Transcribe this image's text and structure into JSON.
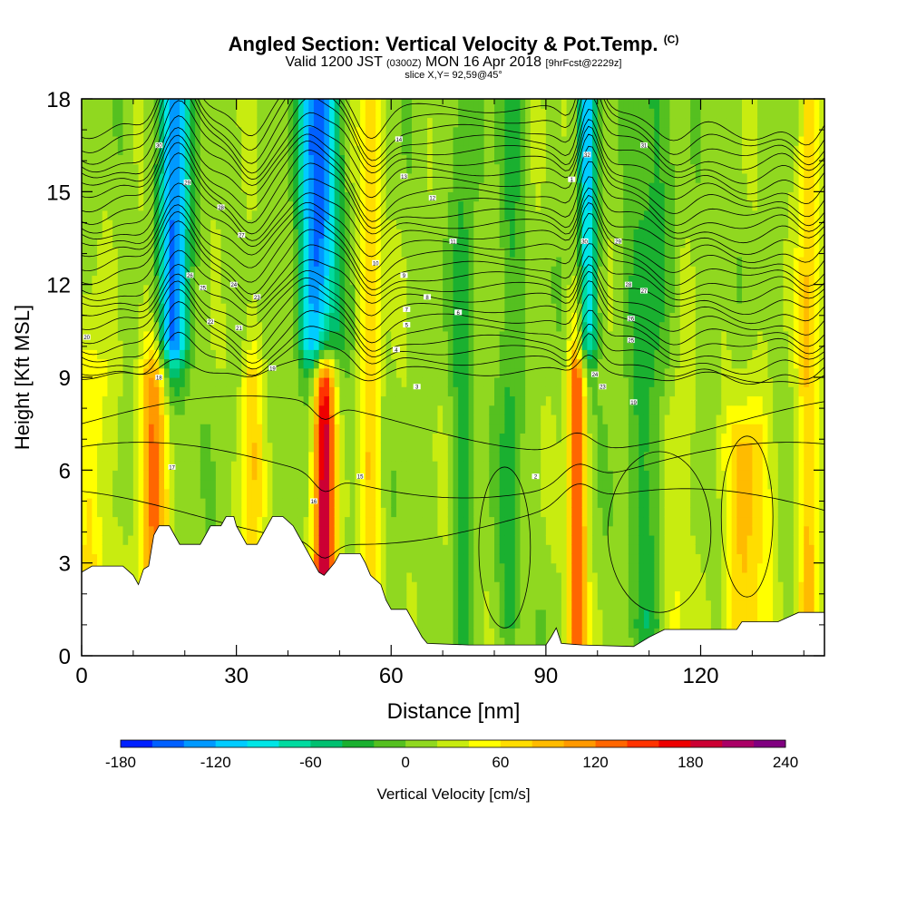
{
  "title": {
    "main": "Angled Section: Vertical Velocity & Pot.Temp.",
    "copyright": "(C)",
    "valid_prefix": "Valid 1200 JST",
    "utc": "(0300Z)",
    "valid_suffix": "MON 16 Apr 2018",
    "forecast": "[9hrFcst@2229z]",
    "slice": "slice X,Y= 92,59@45°"
  },
  "chart_data": {
    "type": "heatmap",
    "xlabel": "Distance [nm]",
    "ylabel": "Height [Kft MSL]",
    "xlim": [
      0,
      144
    ],
    "ylim": [
      0,
      18
    ],
    "x_ticks": [
      "0",
      "30",
      "60",
      "90",
      "120"
    ],
    "y_ticks": [
      "0",
      "3",
      "6",
      "9",
      "12",
      "15",
      "18"
    ],
    "colorbar": {
      "label": "Vertical Velocity [cm/s]",
      "tick_labels": [
        "-180",
        "-120",
        "-60",
        "0",
        "60",
        "120",
        "180",
        "240"
      ],
      "colors": [
        "#0020ff",
        "#0060ff",
        "#0099ff",
        "#00ccff",
        "#00e6e6",
        "#00dba0",
        "#00c070",
        "#1ab030",
        "#55c020",
        "#90d820",
        "#c8ec10",
        "#ffff00",
        "#ffdd00",
        "#ffbb00",
        "#ff9900",
        "#ff6600",
        "#ff3300",
        "#ee0000",
        "#cc0033",
        "#aa0066",
        "#800080"
      ]
    },
    "updraft_bands": [
      {
        "x": 2,
        "width": 5,
        "top": 9,
        "value": 50
      },
      {
        "x": 14,
        "width": 4,
        "top": 9,
        "value": 100
      },
      {
        "x": 33,
        "width": 3,
        "top": 9,
        "value": 60
      },
      {
        "x": 47,
        "width": 3,
        "top": 9,
        "value": 190
      },
      {
        "x": 56,
        "width": 3,
        "top": 18,
        "value": 60
      },
      {
        "x": 96,
        "width": 2.5,
        "top": 9,
        "value": 140
      },
      {
        "x": 115,
        "width": 4,
        "top": 8,
        "value": 40
      },
      {
        "x": 129,
        "width": 6,
        "top": 7,
        "value": 70
      },
      {
        "x": 141,
        "width": 3,
        "top": 18,
        "value": 70
      }
    ],
    "downdraft_bands": [
      {
        "x": 18,
        "width": 4,
        "bottom": 10,
        "value": -160
      },
      {
        "x": 46,
        "width": 5,
        "bottom": 10,
        "value": -175
      },
      {
        "x": 98,
        "width": 2.5,
        "bottom": 10,
        "value": -115
      },
      {
        "x": 74,
        "width": 3,
        "bottom": 1,
        "value": -40
      },
      {
        "x": 83,
        "width": 3,
        "bottom": 1,
        "value": -40
      },
      {
        "x": 110,
        "width": 6,
        "bottom": 1,
        "value": -40
      }
    ],
    "theta_labels": [
      {
        "x": 15,
        "y": 16.5,
        "text": "30"
      },
      {
        "x": 20.5,
        "y": 15.3,
        "text": "29"
      },
      {
        "x": 27,
        "y": 14.5,
        "text": "28"
      },
      {
        "x": 31,
        "y": 13.6,
        "text": "27"
      },
      {
        "x": 21,
        "y": 12.3,
        "text": "26"
      },
      {
        "x": 23.5,
        "y": 11.9,
        "text": "25"
      },
      {
        "x": 29.5,
        "y": 12,
        "text": "24"
      },
      {
        "x": 34,
        "y": 11.6,
        "text": "23"
      },
      {
        "x": 25,
        "y": 10.8,
        "text": "22"
      },
      {
        "x": 30.5,
        "y": 10.6,
        "text": "21"
      },
      {
        "x": 1,
        "y": 10.3,
        "text": "20"
      },
      {
        "x": 37,
        "y": 9.3,
        "text": "19"
      },
      {
        "x": 15,
        "y": 9,
        "text": "18"
      },
      {
        "x": 17.5,
        "y": 6.1,
        "text": "17"
      },
      {
        "x": 45,
        "y": 5.0,
        "text": "16"
      },
      {
        "x": 54,
        "y": 5.8,
        "text": "15"
      },
      {
        "x": 61.5,
        "y": 16.7,
        "text": "14"
      },
      {
        "x": 62.5,
        "y": 15.5,
        "text": "13"
      },
      {
        "x": 68,
        "y": 14.8,
        "text": "12"
      },
      {
        "x": 72,
        "y": 13.4,
        "text": "11"
      },
      {
        "x": 57,
        "y": 12.7,
        "text": "10"
      },
      {
        "x": 62.5,
        "y": 12.3,
        "text": "9"
      },
      {
        "x": 67,
        "y": 11.6,
        "text": "8"
      },
      {
        "x": 63,
        "y": 11.2,
        "text": "7"
      },
      {
        "x": 73,
        "y": 11.1,
        "text": "6"
      },
      {
        "x": 63,
        "y": 10.7,
        "text": "5"
      },
      {
        "x": 61,
        "y": 9.9,
        "text": "4"
      },
      {
        "x": 65,
        "y": 8.7,
        "text": "3"
      },
      {
        "x": 88,
        "y": 5.8,
        "text": "2"
      },
      {
        "x": 95,
        "y": 15.4,
        "text": "1"
      },
      {
        "x": 98,
        "y": 16.2,
        "text": "32"
      },
      {
        "x": 109,
        "y": 16.5,
        "text": "31"
      },
      {
        "x": 97.5,
        "y": 13.4,
        "text": "30"
      },
      {
        "x": 104,
        "y": 13.4,
        "text": "29"
      },
      {
        "x": 106,
        "y": 12.0,
        "text": "28"
      },
      {
        "x": 109,
        "y": 11.8,
        "text": "27"
      },
      {
        "x": 106.5,
        "y": 10.9,
        "text": "26"
      },
      {
        "x": 106.5,
        "y": 10.2,
        "text": "25"
      },
      {
        "x": 99.5,
        "y": 9.1,
        "text": "24"
      },
      {
        "x": 101,
        "y": 8.7,
        "text": "23"
      },
      {
        "x": 107,
        "y": 8.2,
        "text": "19"
      }
    ],
    "terrain": [
      [
        0,
        2.7
      ],
      [
        2,
        2.9
      ],
      [
        8,
        2.9
      ],
      [
        10,
        2.6
      ],
      [
        11,
        2.3
      ],
      [
        12,
        2.8
      ],
      [
        13,
        2.9
      ],
      [
        14,
        3.9
      ],
      [
        15,
        4.2
      ],
      [
        17,
        4.2
      ],
      [
        18,
        3.9
      ],
      [
        19,
        3.6
      ],
      [
        23,
        3.6
      ],
      [
        24,
        3.9
      ],
      [
        25,
        4.2
      ],
      [
        27,
        4.2
      ],
      [
        28,
        4.5
      ],
      [
        29.5,
        4.5
      ],
      [
        30,
        4.2
      ],
      [
        31,
        3.9
      ],
      [
        32,
        3.6
      ],
      [
        34,
        3.6
      ],
      [
        35,
        3.9
      ],
      [
        36,
        4.2
      ],
      [
        37,
        4.5
      ],
      [
        39,
        4.5
      ],
      [
        41,
        4.2
      ],
      [
        42,
        3.9
      ],
      [
        43,
        3.6
      ],
      [
        44,
        3.3
      ],
      [
        45,
        3.0
      ],
      [
        46,
        2.7
      ],
      [
        47,
        2.6
      ],
      [
        48,
        2.8
      ],
      [
        49,
        3.0
      ],
      [
        50,
        3.3
      ],
      [
        54,
        3.3
      ],
      [
        55,
        3.0
      ],
      [
        56,
        2.6
      ],
      [
        58,
        2.3
      ],
      [
        59,
        1.8
      ],
      [
        60,
        1.5
      ],
      [
        63,
        1.5
      ],
      [
        64,
        1.2
      ],
      [
        65,
        0.9
      ],
      [
        66,
        0.6
      ],
      [
        67,
        0.4
      ],
      [
        75,
        0.35
      ],
      [
        85,
        0.35
      ],
      [
        90,
        0.35
      ],
      [
        91,
        0.6
      ],
      [
        92,
        0.9
      ],
      [
        93,
        0.4
      ],
      [
        97,
        0.35
      ],
      [
        107,
        0.3
      ],
      [
        110,
        0.6
      ],
      [
        113,
        0.85
      ],
      [
        120,
        0.85
      ],
      [
        127,
        0.85
      ],
      [
        128,
        1.1
      ],
      [
        135,
        1.1
      ],
      [
        139,
        1.4
      ],
      [
        144,
        1.4
      ]
    ]
  }
}
